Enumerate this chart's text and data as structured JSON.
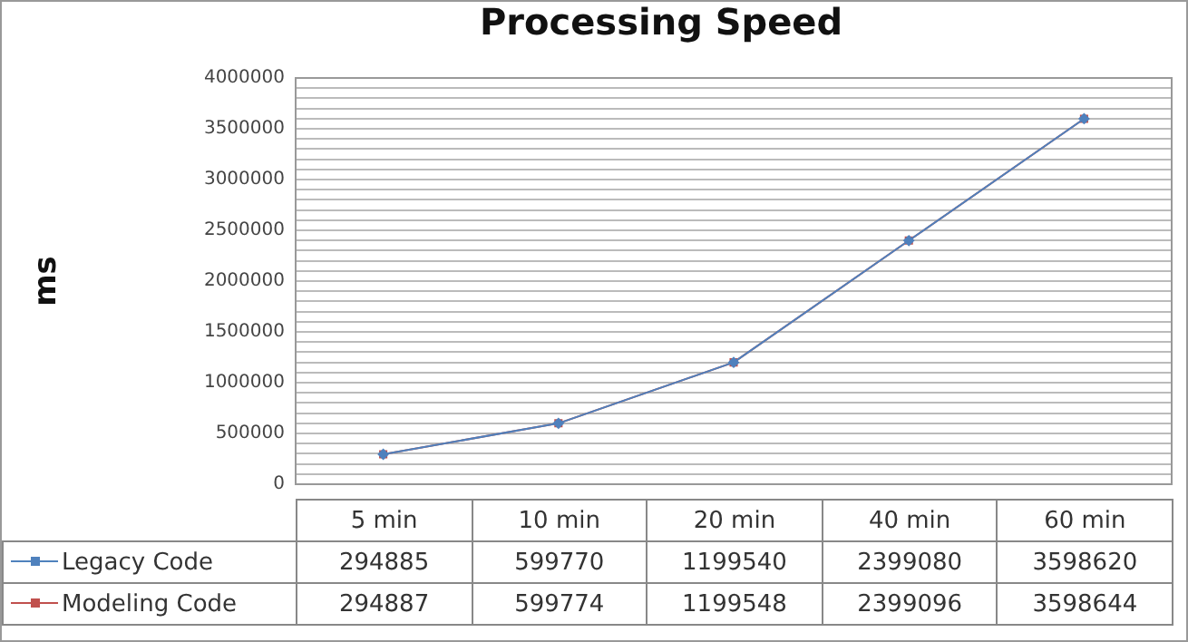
{
  "chart_data": {
    "type": "line",
    "title": "Processing Speed",
    "ylabel": "ms",
    "categories": [
      "5 min",
      "10 min",
      "20 min",
      "40 min",
      "60 min"
    ],
    "series": [
      {
        "name": "Legacy Code",
        "color": "#4f81bd",
        "marker": "diamond",
        "values": [
          294885,
          599770,
          1199540,
          2399080,
          3598620
        ]
      },
      {
        "name": "Modeling Code",
        "color": "#c0504d",
        "marker": "square",
        "values": [
          294887,
          599774,
          1199548,
          2399096,
          3598644
        ]
      }
    ],
    "ylim": [
      0,
      4000000
    ],
    "yticks": [
      0,
      {
        "value": 100000,
        "label": null
      },
      {
        "value": 200000,
        "label": null
      },
      {
        "value": 300000,
        "label": null
      },
      {
        "value": 400000,
        "label": null
      },
      500000,
      {
        "value": 600000,
        "label": null
      },
      {
        "value": 700000,
        "label": null
      },
      {
        "value": 800000,
        "label": null
      },
      {
        "value": 900000,
        "label": null
      },
      1000000,
      {
        "value": 1100000,
        "label": null
      },
      {
        "value": 1200000,
        "label": null
      },
      {
        "value": 1300000,
        "label": null
      },
      {
        "value": 1400000,
        "label": null
      },
      1500000,
      {
        "value": 1600000,
        "label": null
      },
      {
        "value": 1700000,
        "label": null
      },
      {
        "value": 1800000,
        "label": null
      },
      {
        "value": 1900000,
        "label": null
      },
      2000000,
      {
        "value": 2100000,
        "label": null
      },
      {
        "value": 2200000,
        "label": null
      },
      {
        "value": 2300000,
        "label": null
      },
      {
        "value": 2400000,
        "label": null
      },
      2500000,
      {
        "value": 2600000,
        "label": null
      },
      {
        "value": 2700000,
        "label": null
      },
      {
        "value": 2800000,
        "label": null
      },
      {
        "value": 2900000,
        "label": null
      },
      3000000,
      {
        "value": 3100000,
        "label": null
      },
      {
        "value": 3200000,
        "label": null
      },
      {
        "value": 3300000,
        "label": null
      },
      {
        "value": 3400000,
        "label": null
      },
      3500000,
      {
        "value": 3600000,
        "label": null
      },
      {
        "value": 3700000,
        "label": null
      },
      {
        "value": 3800000,
        "label": null
      },
      {
        "value": 3900000,
        "label": null
      },
      4000000
    ],
    "grid": "y",
    "legend": "bottom",
    "data_labels": true
  }
}
